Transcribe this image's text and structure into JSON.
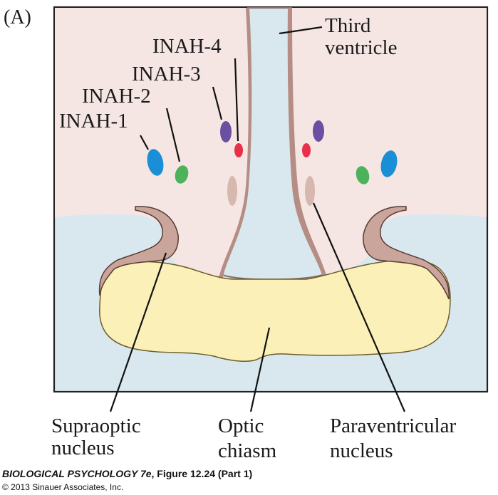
{
  "panel_label": "(A)",
  "labels": {
    "third_ventricle_1": "Third",
    "third_ventricle_2": "ventricle",
    "inah4": "INAH-4",
    "inah3": "INAH-3",
    "inah2": "INAH-2",
    "inah1": "INAH-1",
    "supraoptic_1": "Supraoptic",
    "supraoptic_2": "nucleus",
    "optic_1": "Optic",
    "optic_2": "chiasm",
    "paraventricular_1": "Paraventricular",
    "paraventricular_2": "nucleus"
  },
  "credit": {
    "book": "BIOLOGICAL PSYCHOLOGY 7e",
    "figure": ", Figure 12.24 (Part 1)",
    "copyright": "© 2013 Sinauer Associates, Inc."
  },
  "colors": {
    "tissue": "#f5e6e4",
    "fluid": "#d9e8ef",
    "chiasm": "#fbf1b8",
    "wall": "#c9a59c",
    "inah1": "#1a8fd6",
    "inah2": "#4db35a",
    "inah3": "#e8304a",
    "inah4": "#6a4fa3",
    "paraventricular": "#d6b8ae"
  }
}
